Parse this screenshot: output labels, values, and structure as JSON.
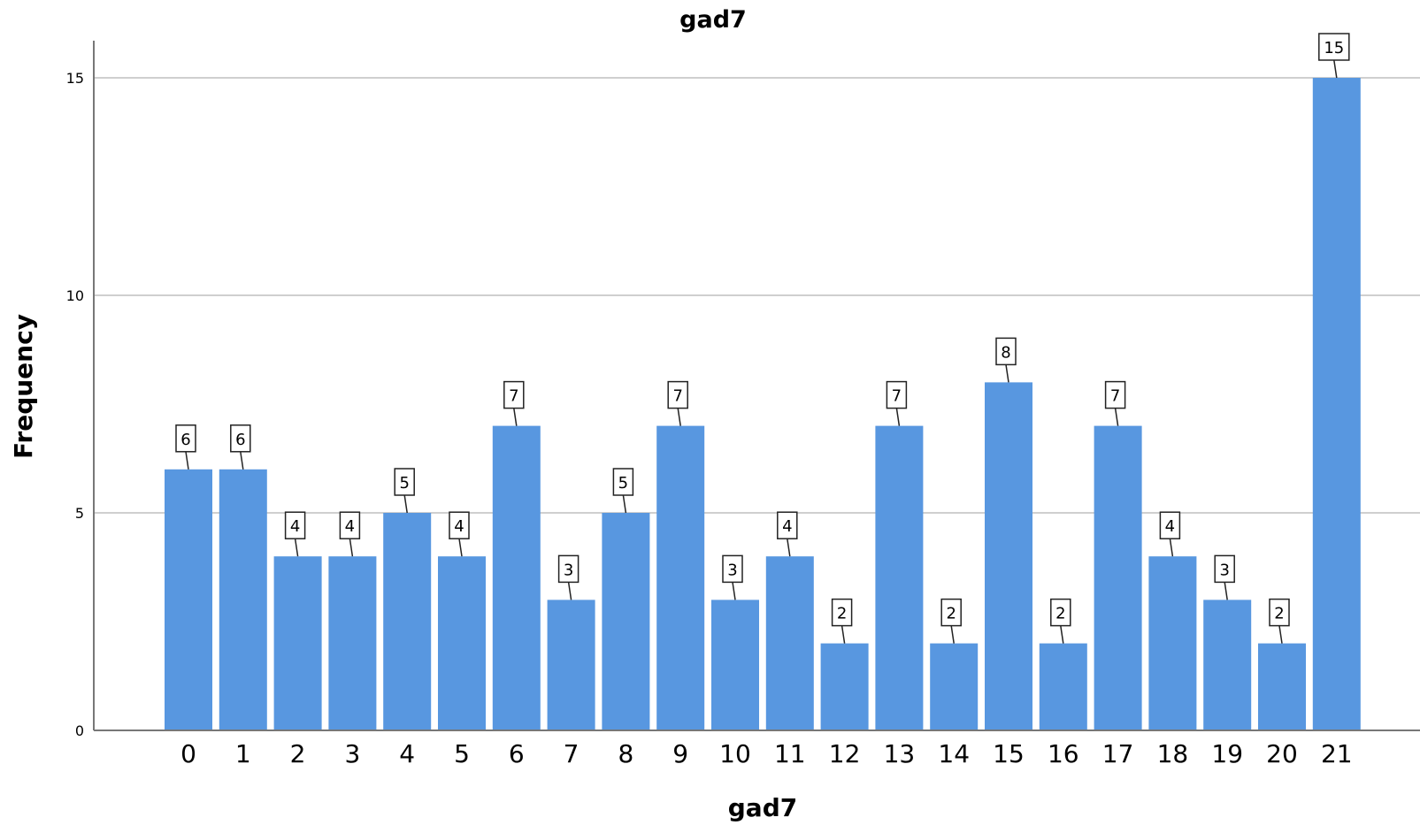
{
  "chart_data": {
    "type": "bar",
    "title": "gad7",
    "xlabel": "gad7",
    "ylabel": "Frequency",
    "categories": [
      "0",
      "1",
      "2",
      "3",
      "4",
      "5",
      "6",
      "7",
      "8",
      "9",
      "10",
      "11",
      "12",
      "13",
      "14",
      "15",
      "16",
      "17",
      "18",
      "19",
      "20",
      "21"
    ],
    "values": [
      6,
      6,
      4,
      4,
      5,
      4,
      7,
      3,
      5,
      7,
      3,
      4,
      2,
      7,
      2,
      8,
      2,
      7,
      4,
      3,
      2,
      15
    ],
    "ylim": [
      0,
      16.5
    ],
    "yticks": [
      "0",
      "5",
      "10",
      "15"
    ],
    "grid": true,
    "colors": {
      "bar": "#5897e0",
      "gridline": "#cfcfcf",
      "axis": "#777777"
    }
  }
}
